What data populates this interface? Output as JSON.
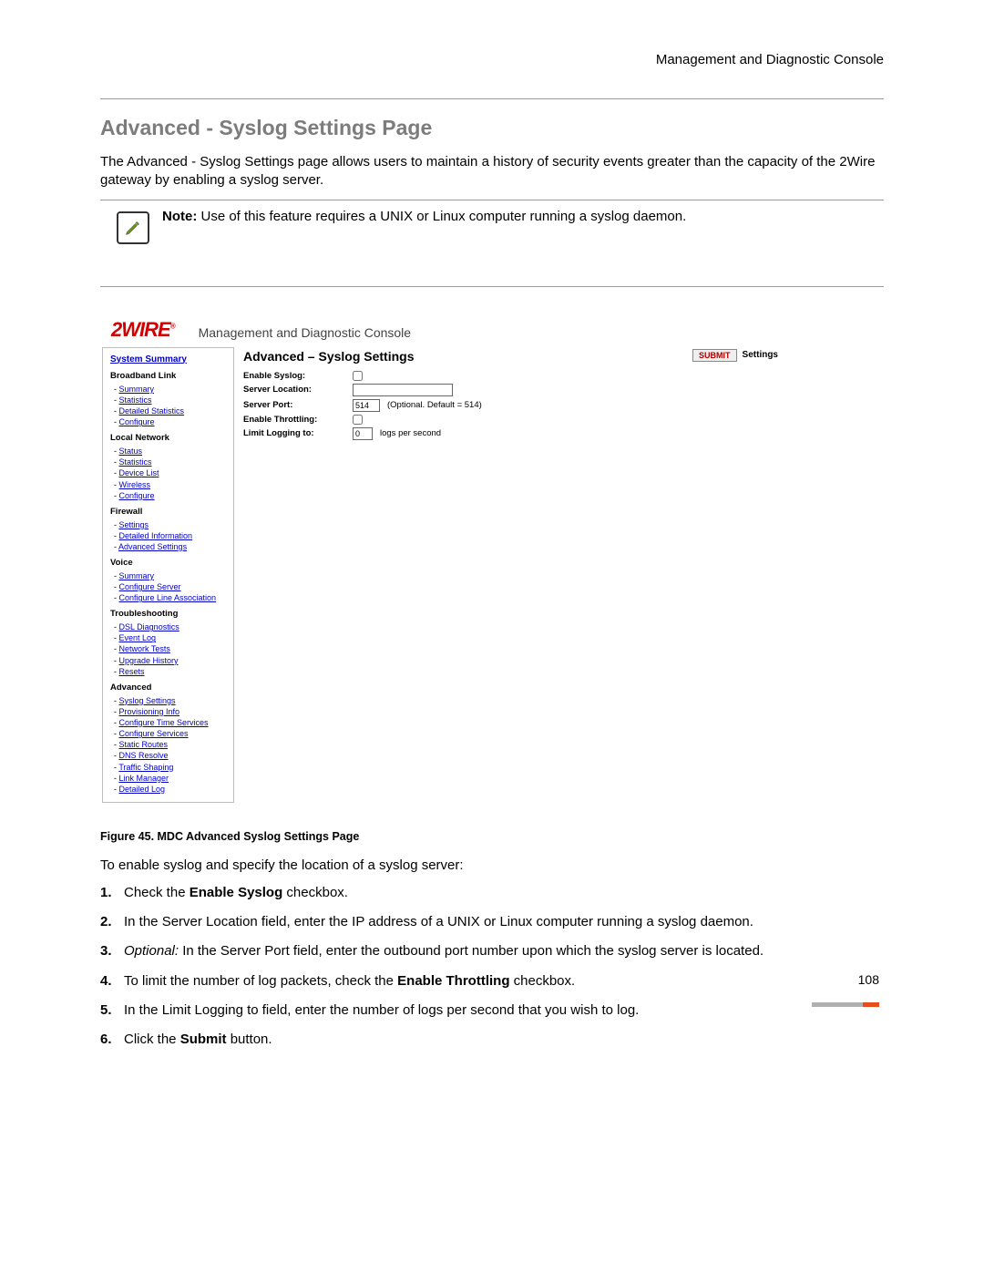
{
  "doc": {
    "header_right": "Management and Diagnostic Console",
    "title": "Advanced - Syslog Settings Page",
    "intro": "The Advanced - Syslog Settings page allows users to maintain a history of security events greater than the capacity of the 2Wire gateway by enabling a syslog server.",
    "note_label": "Note:",
    "note_body": " Use of this feature requires a UNIX or Linux computer running a syslog daemon.",
    "figure_caption": "Figure 45. MDC Advanced Syslog Settings Page",
    "lead": "To enable syslog and specify the location of a syslog server:",
    "page_number": "108",
    "steps": {
      "s1a": "Check the ",
      "s1b": "Enable Syslog",
      "s1c": " checkbox.",
      "s2": "In the Server Location field, enter the IP address of a UNIX or Linux computer running a syslog daemon.",
      "s3a": "Optional:",
      "s3b": " In the Server Port field, enter the outbound port number upon which the syslog server is located.",
      "s4a": "To limit the number of log packets, check the ",
      "s4b": "Enable Throttling",
      "s4c": " checkbox.",
      "s5": "In the Limit Logging to field, enter the number of logs per second that you wish to log.",
      "s6a": "Click the ",
      "s6b": "Submit",
      "s6c": " button."
    }
  },
  "ui": {
    "brand": "2WIRE",
    "console_title": "Management and Diagnostic Console",
    "panel_title": "Advanced – Syslog Settings",
    "submit_label": "SUBMIT",
    "settings_label": "Settings",
    "form": {
      "enable_syslog": "Enable Syslog:",
      "server_location": "Server Location:",
      "server_port": "Server Port:",
      "server_port_value": "514",
      "server_port_hint": "(Optional. Default = 514)",
      "enable_throttling": "Enable Throttling:",
      "limit_logging": "Limit Logging to:",
      "limit_logging_value": "0",
      "limit_logging_hint": "logs per second"
    },
    "sidebar": {
      "top": "System Summary",
      "groups": [
        {
          "title": "Broadband Link",
          "items": [
            "Summary",
            "Statistics",
            "Detailed Statistics",
            "Configure"
          ]
        },
        {
          "title": "Local Network",
          "items": [
            "Status",
            "Statistics",
            "Device List",
            "Wireless",
            "Configure"
          ]
        },
        {
          "title": "Firewall",
          "items": [
            "Settings",
            "Detailed Information",
            "Advanced Settings"
          ]
        },
        {
          "title": "Voice",
          "items": [
            "Summary",
            "Configure Server",
            "Configure Line Association"
          ]
        },
        {
          "title": "Troubleshooting",
          "items": [
            "DSL Diagnostics",
            "Event Log",
            "Network Tests",
            "Upgrade History",
            "Resets"
          ]
        },
        {
          "title": "Advanced",
          "items": [
            "Syslog Settings",
            "Provisioning Info",
            "Configure Time Services",
            "Configure Services",
            "Static Routes",
            "DNS Resolve",
            "Traffic Shaping",
            "Link Manager",
            "Detailed Log"
          ]
        }
      ]
    }
  },
  "style": {
    "heading_color": "#7c7c7c",
    "link_color": "#0000cc",
    "brand_color": "#d20000",
    "footer_gray": "#b0b0b0",
    "footer_orange": "#e84c1a"
  }
}
